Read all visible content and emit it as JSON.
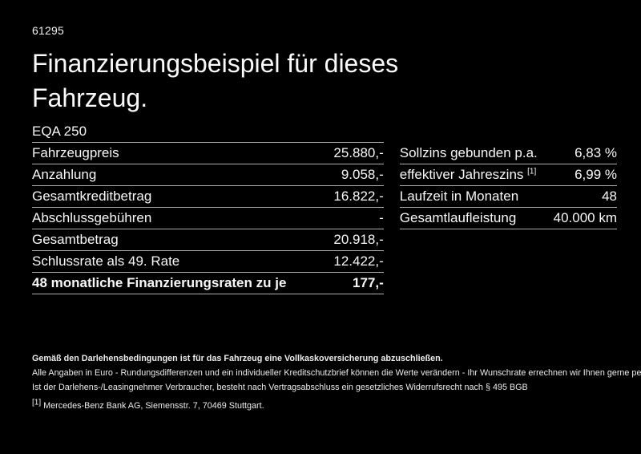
{
  "page": {
    "bg_color": "#000000",
    "text_color": "#f5f5f5",
    "divider_color": "#adadad"
  },
  "header": {
    "reference_number": "61295",
    "title_line1": "Finanzierungsbeispiel für dieses",
    "title_line2": "Fahrzeug.",
    "model": "EQA 250"
  },
  "finance_table": {
    "rows": [
      {
        "label": "Fahrzeugpreis",
        "value": "25.880,-"
      },
      {
        "label": "Anzahlung",
        "value": "9.058,-"
      },
      {
        "label": "Gesamtkreditbetrag",
        "value": "16.822,-"
      },
      {
        "label": "Abschlussgebühren",
        "value": "-"
      },
      {
        "label": "Gesamtbetrag",
        "value": "20.918,-"
      },
      {
        "label": "Schlussrate als 49. Rate",
        "value": "12.422,-"
      },
      {
        "label": "48 monatliche Finanzierungsraten zu je",
        "value": "177,-"
      }
    ]
  },
  "conditions_table": {
    "rows": [
      {
        "label": "Sollzins gebunden p.a.",
        "sup": "",
        "value": "6,83 %"
      },
      {
        "label": "effektiver Jahreszins",
        "sup": "[1]",
        "value": "6,99 %"
      },
      {
        "label": "Laufzeit in Monaten",
        "sup": "",
        "value": "48"
      },
      {
        "label": "Gesamtlaufleistung",
        "sup": "",
        "value": "40.000 km"
      }
    ]
  },
  "footnotes": {
    "insurance_note": "Gemäß den Darlehensbedingungen ist für das Fahrzeug eine Vollkaskoversicherung abzuschließen.",
    "general_note": "Alle Angaben in Euro - Rundungsdifferenzen und ein individueller Kreditschutzbrief können die Werte verändern - Ihr Wunschrate errechnen wir Ihnen gerne persönlich",
    "withdrawal_note": "Ist der Darlehens-/Leasingnehmer Verbraucher, besteht nach Vertragsabschluss ein gesetzliches Widerrufsrecht nach § 495 BGB",
    "reference_marker": "[1]",
    "reference_text": "Mercedes-Benz Bank AG, Siemensstr. 7, 70469 Stuttgart."
  }
}
